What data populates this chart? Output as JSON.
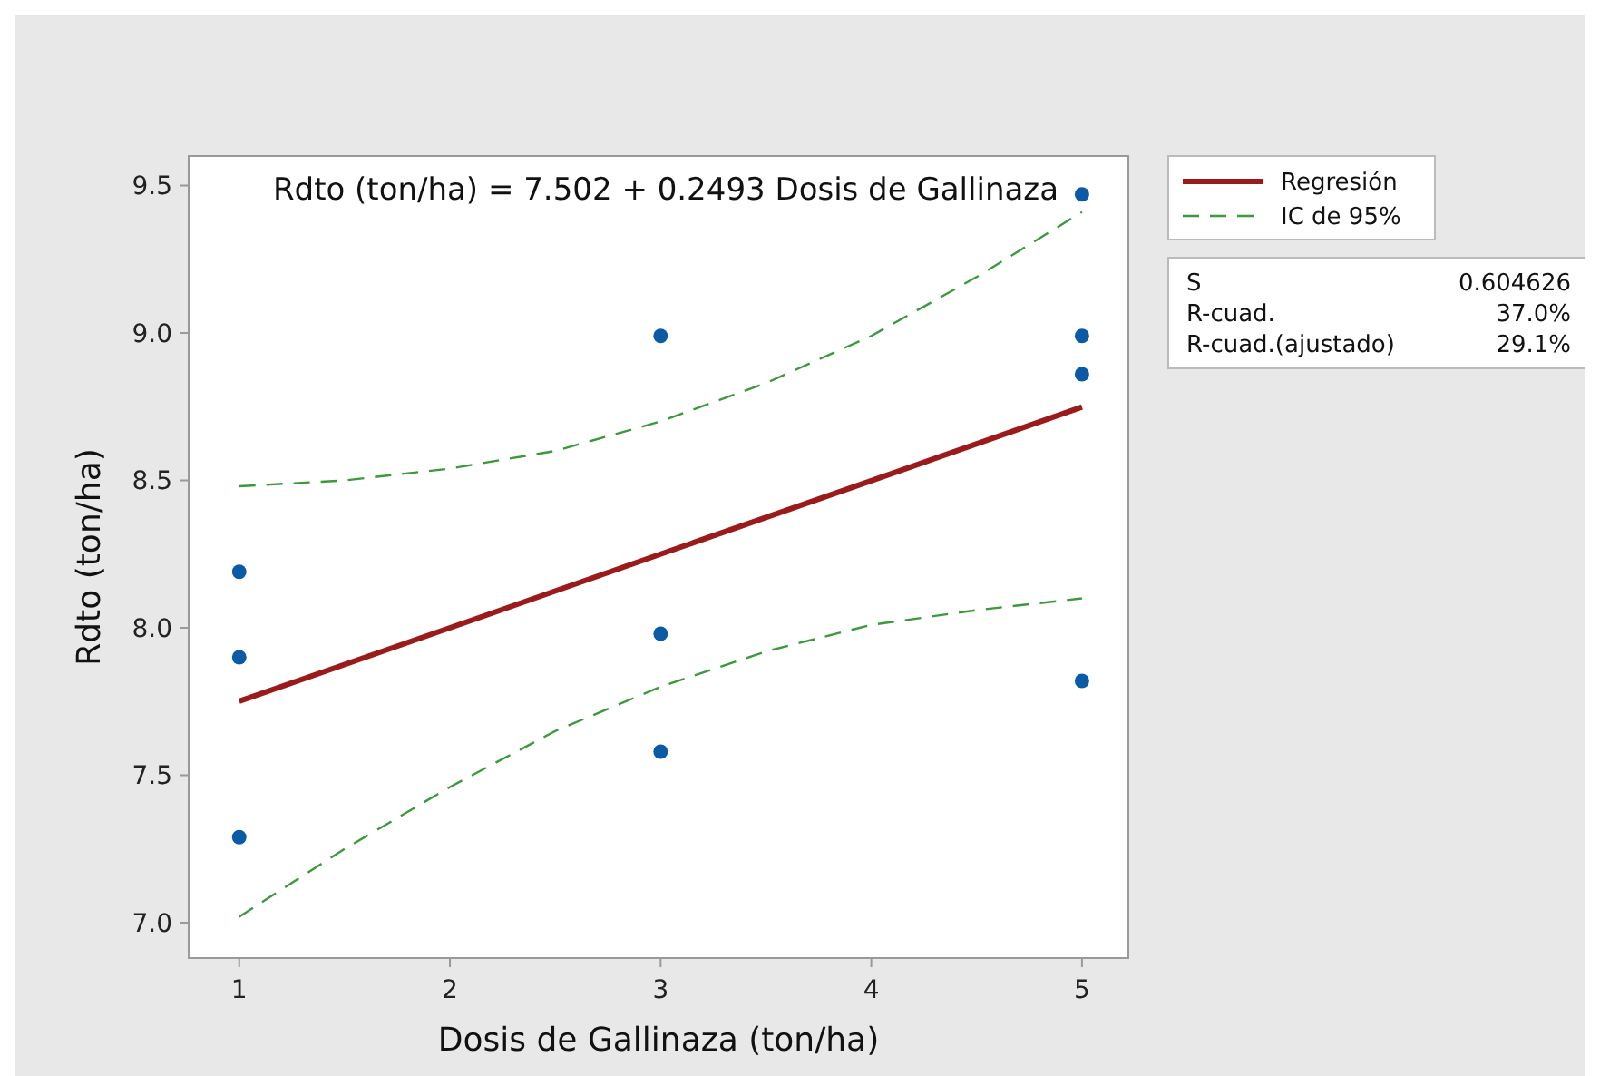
{
  "chart_data": {
    "type": "scatter",
    "xlabel": "Dosis de Gallinaza (ton/ha)",
    "ylabel": "Rdto (ton/ha)",
    "xlim": [
      0.76,
      5.22
    ],
    "ylim": [
      6.88,
      9.6
    ],
    "xticks": [
      1,
      2,
      3,
      4,
      5
    ],
    "yticks": [
      {
        "value": 7,
        "label": "7.0"
      },
      7.5,
      {
        "value": 8,
        "label": "8.0"
      },
      8.5,
      {
        "value": 9,
        "label": "9.0"
      },
      9.5
    ],
    "grid": false,
    "legend": "top right",
    "annotations": [
      "Rdto (ton/ha) = 7.502 + 0.2493 Dosis de Gallinaza",
      "S",
      "0.604626",
      "R-cuad.",
      "37.0%",
      "R-cuad.(ajustado)",
      "29.1%"
    ],
    "series": [
      {
        "color": "#0b5aa5",
        "marker": "circle",
        "x": [
          1,
          1,
          1,
          3,
          3,
          3,
          5,
          5,
          5,
          5
        ],
        "values": [
          8.19,
          7.9,
          7.29,
          8.99,
          7.98,
          7.58,
          9.47,
          8.99,
          8.86,
          7.82
        ]
      },
      {
        "type": "line",
        "name": "Regresión",
        "color": "#9b1b1b",
        "line_style": "solid",
        "x": [
          1,
          2,
          3,
          4,
          5
        ],
        "values": [
          7.751,
          8.0,
          8.25,
          8.499,
          8.749
        ]
      },
      {
        "type": "line",
        "name": "IC de 95%",
        "color": "#3a9a3a",
        "line_style": "dashed",
        "x": [
          1,
          1.5,
          2,
          2.5,
          3,
          3.5,
          4,
          4.5,
          5
        ],
        "values": [
          8.48,
          8.5,
          8.54,
          8.6,
          8.7,
          8.83,
          8.99,
          9.19,
          9.41
        ]
      },
      {
        "type": "line",
        "color": "#3a9a3a",
        "line_style": "dashed",
        "x": [
          1,
          1.5,
          2,
          2.5,
          3,
          3.5,
          4,
          4.5,
          5
        ],
        "values": [
          7.02,
          7.25,
          7.46,
          7.65,
          7.8,
          7.92,
          8.01,
          8.06,
          8.1
        ]
      }
    ]
  }
}
